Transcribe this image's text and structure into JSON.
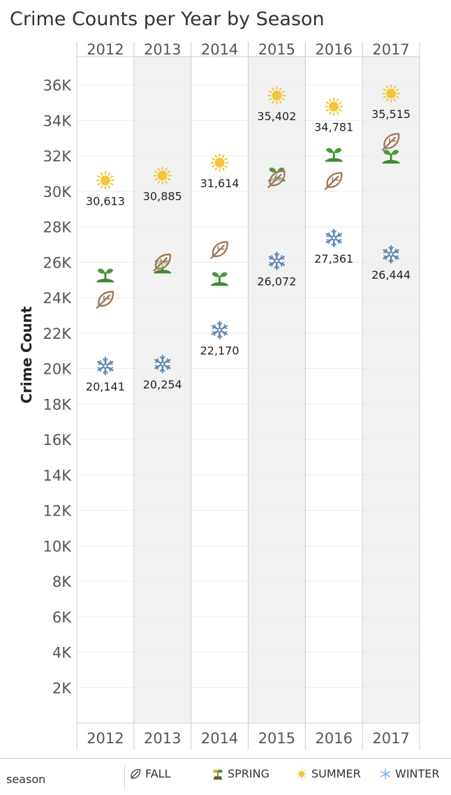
{
  "title": "Crime Counts per Year by Season",
  "legend": {
    "title": "season",
    "items": [
      {
        "label": "FALL",
        "icon": "leaf-icon",
        "color": "#a0785a"
      },
      {
        "label": "SPRING",
        "icon": "sprout-icon",
        "color": "#4a9a3c"
      },
      {
        "label": "SUMMER",
        "icon": "sun-icon",
        "color": "#f2c53d"
      },
      {
        "label": "WINTER",
        "icon": "snowflake-icon",
        "color": "#5b84b1"
      }
    ]
  },
  "chart_data": {
    "type": "scatter",
    "title": "Crime Counts per Year by Season",
    "ylabel": "Crime Count",
    "ylim": [
      0,
      37600
    ],
    "yticks": [
      "2K",
      "4K",
      "6K",
      "8K",
      "10K",
      "12K",
      "14K",
      "16K",
      "18K",
      "20K",
      "22K",
      "24K",
      "26K",
      "28K",
      "30K",
      "32K",
      "34K",
      "36K"
    ],
    "categories": [
      "2012",
      "2013",
      "2014",
      "2015",
      "2016",
      "2017"
    ],
    "grid": true,
    "legend_position": "bottom",
    "series": [
      {
        "name": "SUMMER",
        "icon": "sun-icon",
        "color": "#f2c53d",
        "labeled": true,
        "values": [
          30613,
          30885,
          31614,
          35402,
          34781,
          35515
        ],
        "labels": [
          "30,613",
          "30,885",
          "31,614",
          "35,402",
          "34,781",
          "35,515"
        ]
      },
      {
        "name": "SPRING",
        "icon": "sprout-icon",
        "color": "#4a9a3c",
        "labeled": false,
        "values": [
          25300,
          25800,
          25100,
          31000,
          32100,
          32000
        ]
      },
      {
        "name": "FALL",
        "icon": "leaf-icon",
        "color": "#a0785a",
        "labeled": false,
        "values": [
          23900,
          26000,
          26700,
          30700,
          30600,
          32800
        ]
      },
      {
        "name": "WINTER",
        "icon": "snowflake-icon",
        "color": "#5b84b1",
        "labeled": true,
        "values": [
          20141,
          20254,
          22170,
          26072,
          27361,
          26444
        ],
        "labels": [
          "20,141",
          "20,254",
          "22,170",
          "26,072",
          "27,361",
          "26,444"
        ]
      }
    ]
  }
}
